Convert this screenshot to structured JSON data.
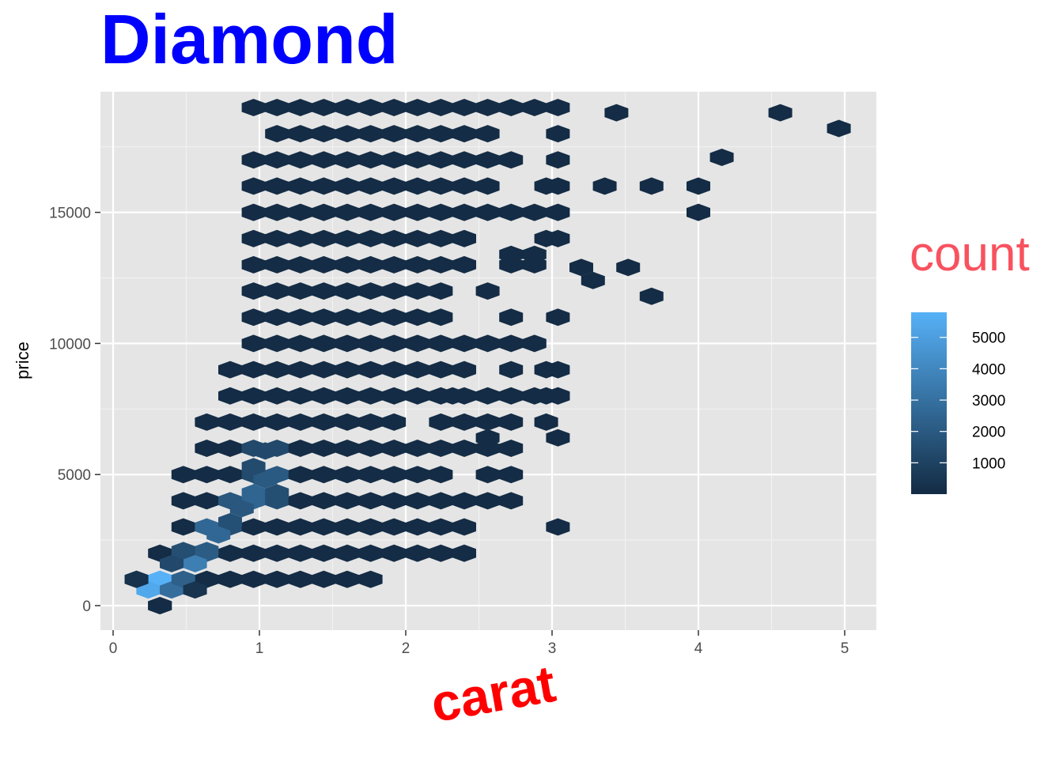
{
  "chart_data": {
    "type": "hexbin",
    "title": "Diamond",
    "xlabel": "carat",
    "ylabel": "price",
    "xlim": [
      -0.04,
      5.21
    ],
    "ylim": [
      -820,
      19800
    ],
    "x_ticks": [
      0,
      1,
      2,
      3,
      4,
      5
    ],
    "x_tick_labels": [
      "0",
      "1",
      "2",
      "3",
      "4",
      "5"
    ],
    "y_ticks": [
      0,
      5000,
      10000,
      15000
    ],
    "y_tick_labels": [
      "0",
      "5000",
      "10000",
      "15000"
    ],
    "grid": true,
    "legend": {
      "title": "count",
      "position": "right",
      "min": 1,
      "max": 5800,
      "ticks": [
        1000,
        2000,
        3000,
        4000,
        5000
      ],
      "tick_labels": [
        "1000",
        "2000",
        "3000",
        "4000",
        "5000"
      ],
      "low_color": "#132B43",
      "high_color": "#56B1F7"
    },
    "colors": {
      "title": "#0000ff",
      "xlabel": "#ff0000",
      "legend_title": "#f8525f",
      "panel_background": "#e5e5e5",
      "grid": "#ffffff"
    },
    "hex_size": {
      "dx": 0.16,
      "dy": 1000
    },
    "hex_grid": {
      "rows": [
        {
          "y": 0,
          "odd": false,
          "cols": [
            [
              0.32,
              0.32
            ]
          ]
        },
        {
          "y": 1000,
          "odd": true,
          "cols": [
            [
              0.16,
              1.28
            ]
          ]
        },
        {
          "y": 2000,
          "odd": false,
          "cols": [
            [
              0.32,
              1.12
            ]
          ]
        },
        {
          "y": 3000,
          "odd": true,
          "cols": [
            [
              0.48,
              1.44
            ]
          ]
        },
        {
          "y": 4000,
          "odd": false,
          "cols": [
            [
              0.48,
              1.6
            ]
          ]
        },
        {
          "y": 5000,
          "odd": true,
          "cols": [
            [
              0.48,
              1.92
            ]
          ]
        },
        {
          "y": 6000,
          "odd": false,
          "cols": [
            [
              0.64,
              2.24
            ]
          ]
        },
        {
          "y": 7000,
          "odd": true,
          "cols": [
            [
              0.64,
              2.4
            ]
          ]
        },
        {
          "y": 8000,
          "odd": false,
          "cols": [
            [
              0.8,
              2.56
            ]
          ]
        },
        {
          "y": 9000,
          "odd": true,
          "cols": [
            [
              0.8,
              2.4
            ]
          ]
        },
        {
          "y": 10000,
          "odd": false,
          "cols": [
            [
              0.96,
              2.56
            ]
          ]
        },
        {
          "y": 11000,
          "odd": true,
          "cols": [
            [
              0.96,
              2.24
            ]
          ]
        },
        {
          "y": 12000,
          "odd": false,
          "cols": [
            [
              0.96,
              2.24
            ]
          ]
        },
        {
          "y": 13000,
          "odd": true,
          "cols": [
            [
              0.96,
              2.4
            ]
          ]
        },
        {
          "y": 14000,
          "odd": false,
          "cols": [
            [
              0.96,
              2.4
            ]
          ]
        },
        {
          "y": 15000,
          "odd": true,
          "cols": [
            [
              0.96,
              2.56
            ]
          ]
        },
        {
          "y": 16000,
          "odd": false,
          "cols": [
            [
              0.96,
              2.56
            ]
          ]
        },
        {
          "y": 17000,
          "odd": true,
          "cols": [
            [
              0.96,
              2.72
            ]
          ]
        },
        {
          "y": 18000,
          "odd": false,
          "cols": [
            [
              1.12,
              2.56
            ]
          ]
        },
        {
          "y": 19000,
          "odd": true,
          "cols": [
            [
              0.96,
              2.88
            ]
          ]
        }
      ],
      "holes": [
        [
          2.08,
          7000
        ],
        [
          2.4,
          5000
        ],
        [
          2.32,
          10000
        ],
        [
          2.48,
          9000
        ]
      ],
      "extra": [
        [
          3.04,
          19000
        ],
        [
          3.04,
          18000
        ],
        [
          2.56,
          17000
        ],
        [
          3.04,
          17000
        ],
        [
          2.96,
          16000
        ],
        [
          3.04,
          16000
        ],
        [
          2.72,
          15000
        ],
        [
          2.88,
          15000
        ],
        [
          3.04,
          15000
        ],
        [
          3.04,
          14000
        ],
        [
          2.96,
          14000
        ],
        [
          2.88,
          13000
        ],
        [
          2.72,
          13000
        ],
        [
          2.56,
          12000
        ],
        [
          2.72,
          11000
        ],
        [
          3.04,
          11000
        ],
        [
          2.56,
          10000
        ],
        [
          2.72,
          10000
        ],
        [
          2.88,
          10000
        ],
        [
          2.72,
          9000
        ],
        [
          2.96,
          9000
        ],
        [
          3.04,
          9000
        ],
        [
          2.88,
          8000
        ],
        [
          2.56,
          7000
        ],
        [
          2.72,
          7000
        ],
        [
          2.96,
          7000
        ],
        [
          2.24,
          6000
        ],
        [
          2.4,
          6000
        ],
        [
          2.56,
          6000
        ],
        [
          2.72,
          6000
        ],
        [
          2.08,
          5000
        ],
        [
          2.24,
          5000
        ],
        [
          2.4,
          5000
        ],
        [
          2.56,
          5000
        ],
        [
          2.72,
          5000
        ],
        [
          2.32,
          8000
        ],
        [
          2.56,
          8000
        ],
        [
          2.72,
          8000
        ],
        [
          2.4,
          8000
        ],
        [
          3.04,
          8000
        ],
        [
          2.96,
          8000
        ],
        [
          2.56,
          4000
        ],
        [
          2.72,
          4000
        ],
        [
          2.4,
          4000
        ],
        [
          3.04,
          3000
        ],
        [
          2.24,
          3000
        ],
        [
          2.4,
          3000
        ],
        [
          2.08,
          3000
        ],
        [
          1.92,
          3000
        ],
        [
          1.92,
          2000
        ],
        [
          1.76,
          2000
        ],
        [
          2.08,
          2000
        ],
        [
          2.24,
          2000
        ],
        [
          2.4,
          2000
        ],
        [
          1.6,
          1000
        ],
        [
          1.76,
          1000
        ],
        [
          1.44,
          1000
        ],
        [
          1.28,
          1000
        ],
        [
          1.28,
          2000
        ],
        [
          1.44,
          2000
        ],
        [
          1.6,
          2000
        ],
        [
          1.44,
          3000
        ],
        [
          1.6,
          3000
        ],
        [
          1.76,
          3000
        ],
        [
          1.6,
          4000
        ],
        [
          1.76,
          4000
        ],
        [
          1.92,
          4000
        ],
        [
          2.08,
          4000
        ],
        [
          2.24,
          4000
        ]
      ]
    },
    "hex_points": [
      [
        3.44,
        18800
      ],
      [
        4.56,
        18800
      ],
      [
        4.96,
        18200
      ],
      [
        4.16,
        17100
      ],
      [
        3.36,
        16000
      ],
      [
        3.68,
        16000
      ],
      [
        4.0,
        16000
      ],
      [
        4.0,
        15000
      ],
      [
        3.2,
        12900
      ],
      [
        3.52,
        12900
      ],
      [
        3.28,
        12400
      ],
      [
        3.68,
        11800
      ],
      [
        0.32,
        0
      ],
      [
        2.56,
        6400
      ],
      [
        3.04,
        6400
      ],
      [
        3.04,
        8000
      ],
      [
        2.88,
        13400
      ],
      [
        2.72,
        13400
      ]
    ],
    "counts": [
      {
        "x": 0.32,
        "y": 1000,
        "count": 5800
      },
      {
        "x": 0.24,
        "y": 600,
        "count": 5400
      },
      {
        "x": 0.4,
        "y": 600,
        "count": 2900
      },
      {
        "x": 0.48,
        "y": 1000,
        "count": 2300
      },
      {
        "x": 0.56,
        "y": 1600,
        "count": 3600
      },
      {
        "x": 0.4,
        "y": 1600,
        "count": 1300
      },
      {
        "x": 0.64,
        "y": 2100,
        "count": 2100
      },
      {
        "x": 0.48,
        "y": 2100,
        "count": 1500
      },
      {
        "x": 0.72,
        "y": 2700,
        "count": 2600
      },
      {
        "x": 0.88,
        "y": 3700,
        "count": 1900
      },
      {
        "x": 0.96,
        "y": 4300,
        "count": 2500
      },
      {
        "x": 1.04,
        "y": 4800,
        "count": 2000
      },
      {
        "x": 1.12,
        "y": 4300,
        "count": 1500
      },
      {
        "x": 1.04,
        "y": 5900,
        "count": 1300
      },
      {
        "x": 0.96,
        "y": 5300,
        "count": 1400
      },
      {
        "x": 0.8,
        "y": 3200,
        "count": 1600
      },
      {
        "x": 0.56,
        "y": 600,
        "count": 400
      },
      {
        "x": 0.16,
        "y": 1000,
        "count": 300
      }
    ]
  }
}
